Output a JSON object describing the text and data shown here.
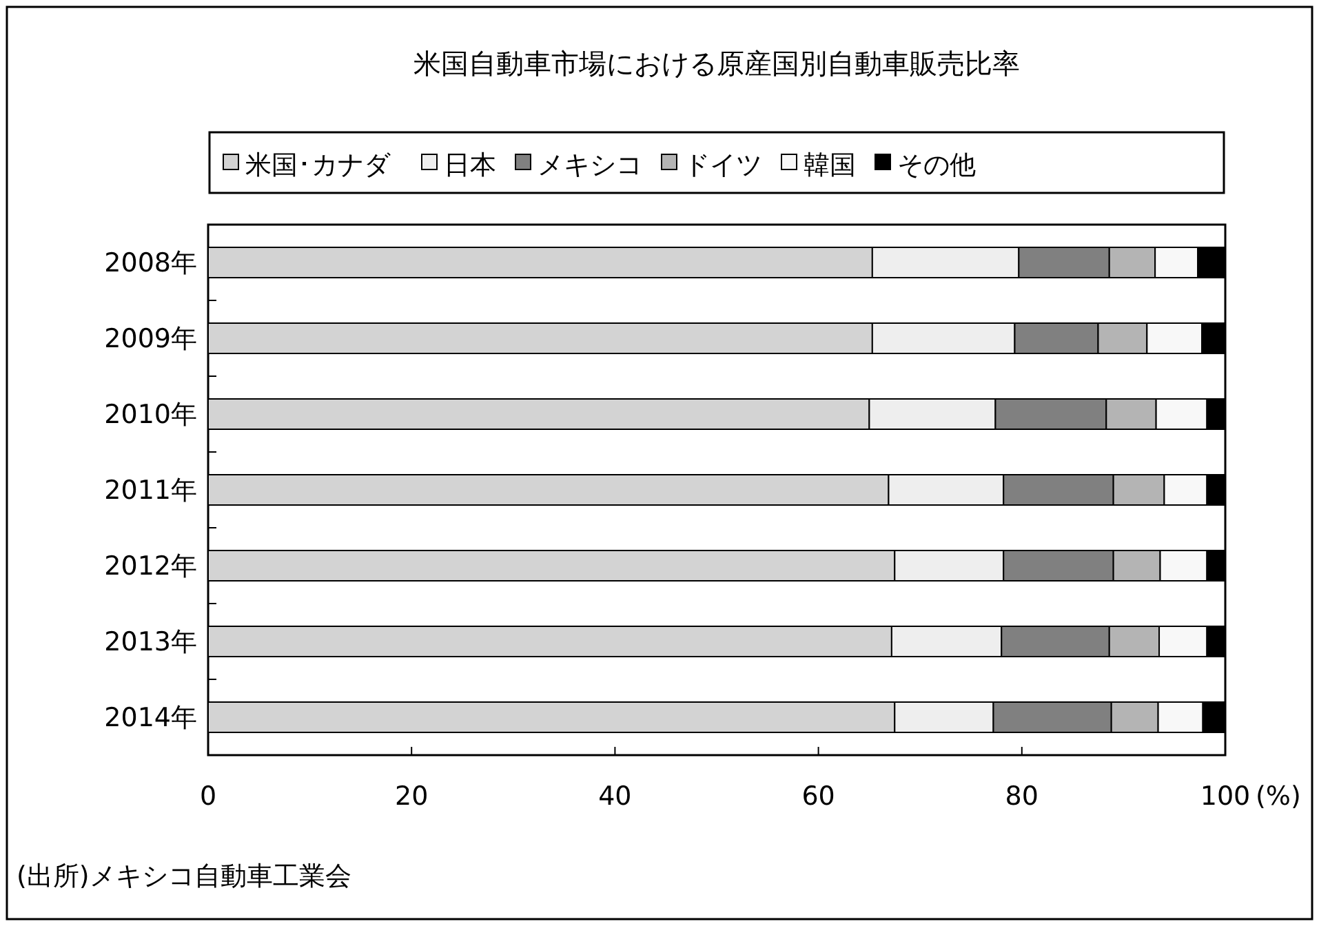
{
  "chart_data": {
    "type": "bar",
    "orientation": "horizontal",
    "stacked": true,
    "title": "米国自動車市場における原産国別自動車販売比率",
    "categories": [
      "2008年",
      "2009年",
      "2010年",
      "2011年",
      "2012年",
      "2013年",
      "2014年"
    ],
    "series": [
      {
        "name": "米国･カナダ",
        "color": "#d3d3d3",
        "values": [
          65.3,
          65.3,
          65.0,
          66.9,
          67.5,
          67.2,
          67.5
        ]
      },
      {
        "name": "日本",
        "color": "#eeeeee",
        "values": [
          14.4,
          14.0,
          12.4,
          11.3,
          10.7,
          10.8,
          9.7
        ]
      },
      {
        "name": "メキシコ",
        "color": "#808080",
        "values": [
          8.9,
          8.2,
          10.9,
          10.8,
          10.8,
          10.6,
          11.6
        ]
      },
      {
        "name": "ドイツ",
        "color": "#b4b4b4",
        "values": [
          4.5,
          4.8,
          4.9,
          5.0,
          4.6,
          4.9,
          4.6
        ]
      },
      {
        "name": "韓国",
        "color": "#f8f8f8",
        "values": [
          4.2,
          5.4,
          5.0,
          4.2,
          4.6,
          4.7,
          4.4
        ]
      },
      {
        "name": "その他",
        "color": "#000000",
        "values": [
          2.7,
          2.3,
          1.8,
          1.8,
          1.8,
          1.8,
          2.2
        ]
      }
    ],
    "xlim": [
      0,
      100
    ],
    "xticks": [
      0,
      20,
      40,
      60,
      80,
      100
    ],
    "xlabel": "(%)",
    "legend": "top",
    "grid": false,
    "annotations": [
      "(出所)メキシコ自動車工業会"
    ]
  }
}
